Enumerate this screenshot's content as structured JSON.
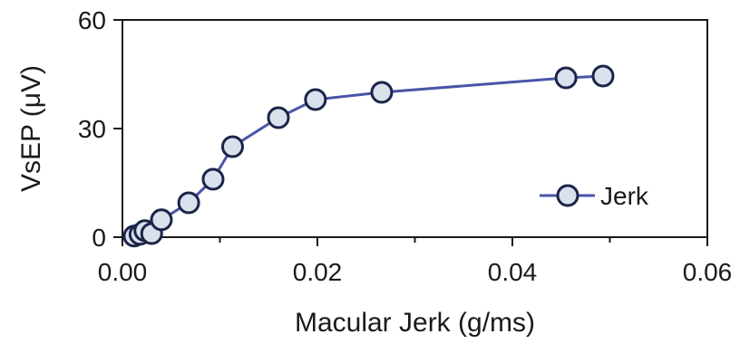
{
  "chart_data": {
    "type": "line",
    "title": "",
    "xlabel": "Macular Jerk (g/ms)",
    "ylabel": "VsEP (μV)",
    "xlim": [
      0,
      0.06
    ],
    "ylim": [
      0,
      60
    ],
    "x_ticks": [
      "0.00",
      "0.02",
      "0.04",
      "0.06"
    ],
    "y_ticks": [
      "0",
      "30",
      "60"
    ],
    "grid": false,
    "legend": "inside-right",
    "series": [
      {
        "name": "Jerk",
        "color": "#4a55a8",
        "marker_fill": "#d9e2ec",
        "marker_edge": "#1b2448",
        "x": [
          0.0012,
          0.0018,
          0.0023,
          0.003,
          0.004,
          0.0068,
          0.0093,
          0.0113,
          0.016,
          0.0198,
          0.0266,
          0.0455,
          0.0493
        ],
        "y": [
          0.3,
          0.8,
          1.8,
          1.0,
          4.8,
          9.5,
          16,
          25,
          33,
          38,
          40,
          44,
          44.5
        ]
      }
    ]
  }
}
